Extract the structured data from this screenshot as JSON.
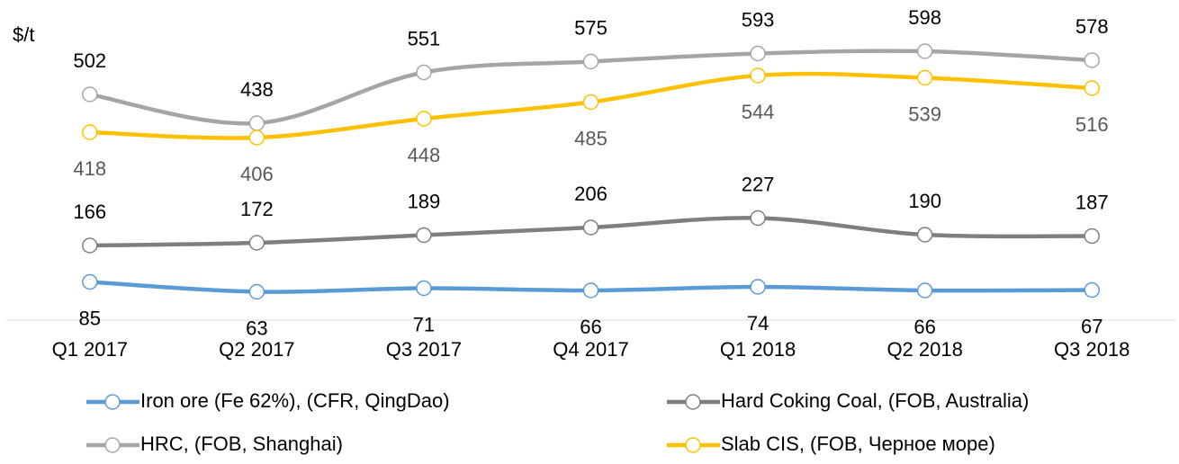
{
  "chart_data": {
    "type": "line",
    "y_label": "$/t",
    "categories": [
      "Q1 2017",
      "Q2 2017",
      "Q3 2017",
      "Q4 2017",
      "Q1 2018",
      "Q2 2018",
      "Q3 2018"
    ],
    "series": [
      {
        "name": "Iron ore (Fe 62%), (CFR, QingDao)",
        "color": "#5b9bd5",
        "values": [
          85,
          63,
          71,
          66,
          74,
          66,
          67
        ],
        "label_position": "below"
      },
      {
        "name": "Hard Coking Coal, (FOB, Australia)",
        "color": "#7f7f7f",
        "values": [
          166,
          172,
          189,
          206,
          227,
          190,
          187
        ],
        "label_position": "above"
      },
      {
        "name": "HRC, (FOB, Shanghai)",
        "color": "#a5a5a5",
        "values": [
          502,
          438,
          551,
          575,
          593,
          598,
          578
        ],
        "label_position": "above"
      },
      {
        "name": "Slab CIS, (FOB, Черное море)",
        "color": "#ffc000",
        "values": [
          418,
          406,
          448,
          485,
          544,
          539,
          516
        ],
        "label_position": "below"
      }
    ],
    "ylim": [
      0,
      700
    ],
    "legend": "bottom"
  }
}
